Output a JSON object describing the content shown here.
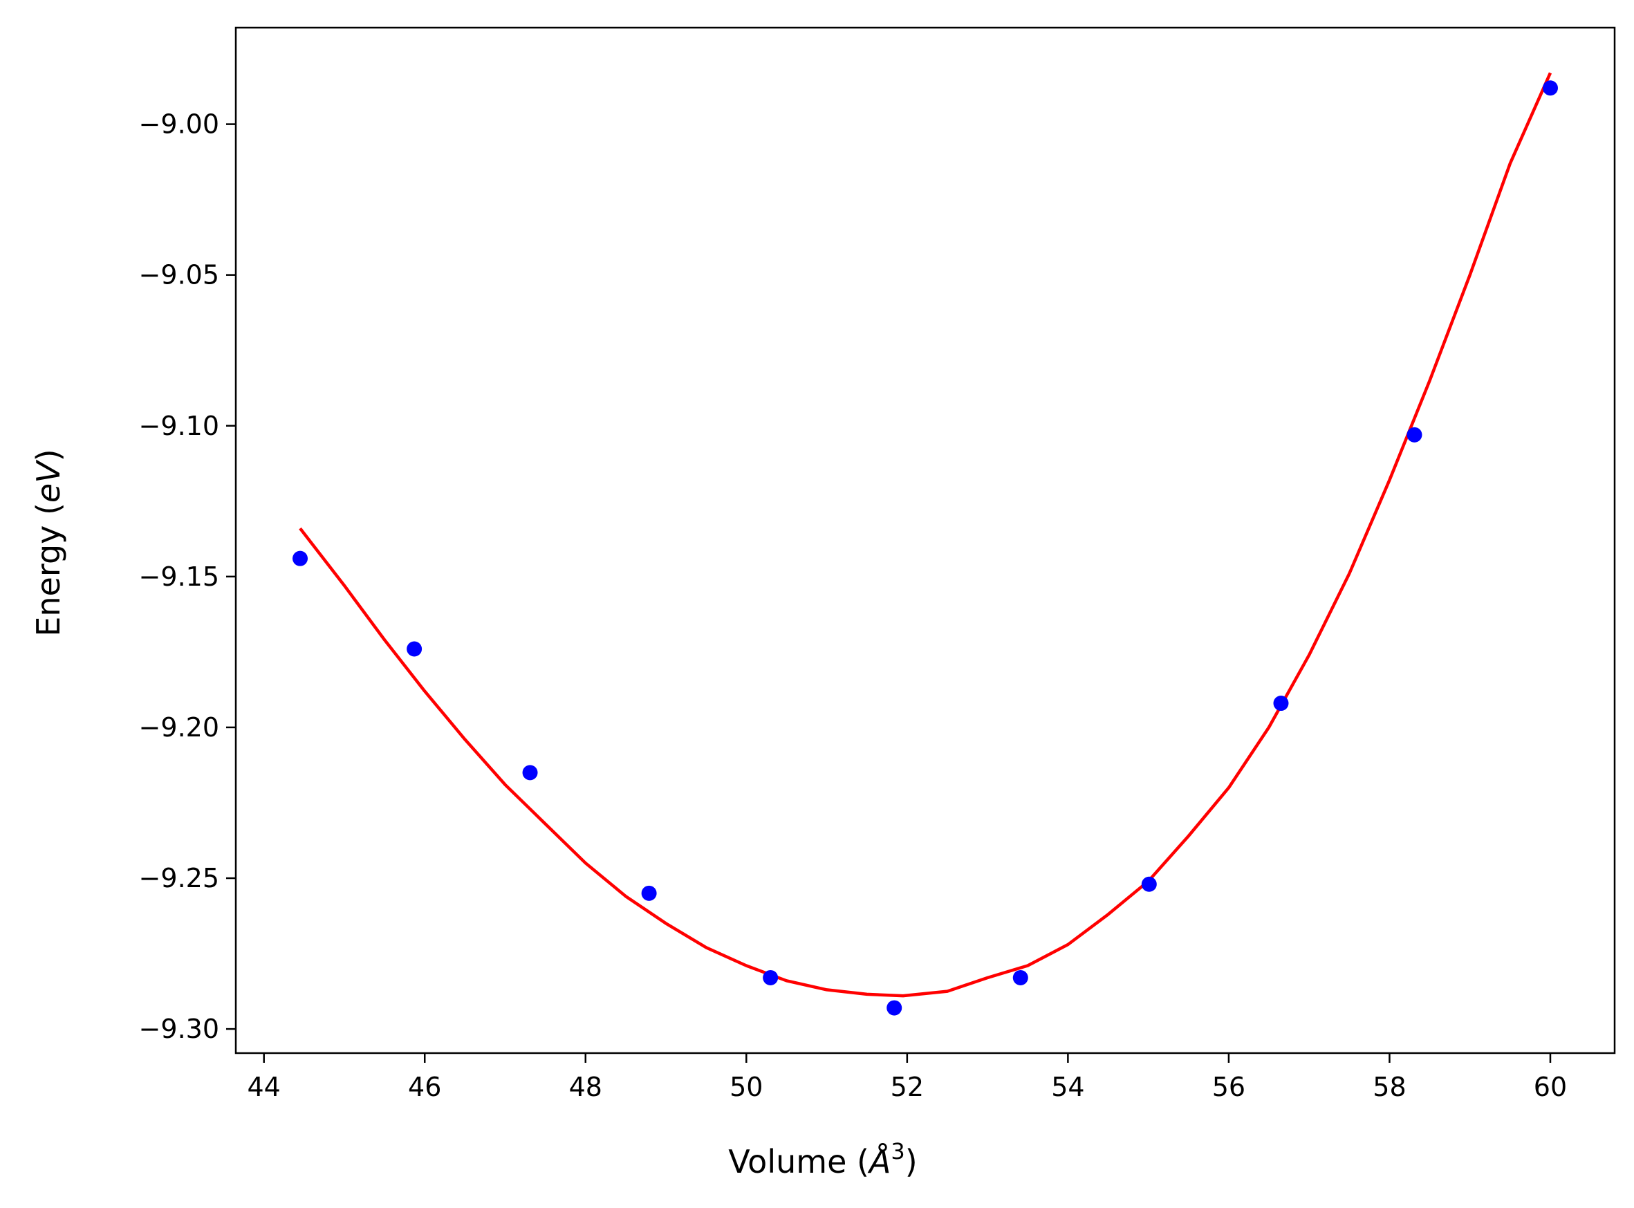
{
  "chart_data": {
    "type": "scatter",
    "title": "",
    "xlabel": "Volume (Å³)",
    "xlabel_parts": {
      "prefix": "Volume (",
      "symbol": "Å",
      "exponent": "3",
      "suffix": ")"
    },
    "ylabel": "Energy (eV)",
    "ylabel_parts": {
      "prefix": "Energy (",
      "symbol": "eV",
      "suffix": ")"
    },
    "xlim": [
      43.65,
      60.8
    ],
    "ylim": [
      -9.308,
      -8.968
    ],
    "x_ticks": [
      44,
      46,
      48,
      50,
      52,
      54,
      56,
      58,
      60
    ],
    "x_tick_labels": [
      "44",
      "46",
      "48",
      "50",
      "52",
      "54",
      "56",
      "58",
      "60"
    ],
    "y_ticks": [
      -9.0,
      -9.05,
      -9.1,
      -9.15,
      -9.2,
      -9.25,
      -9.3
    ],
    "y_tick_labels": [
      "−9.00",
      "−9.05",
      "−9.10",
      "−9.15",
      "−9.20",
      "−9.25",
      "−9.30"
    ],
    "grid": false,
    "series": [
      {
        "kind": "scatter",
        "color": "#0000ff",
        "x": [
          44.45,
          45.87,
          47.31,
          48.79,
          50.3,
          51.84,
          53.41,
          55.01,
          56.65,
          58.31,
          60.0
        ],
        "y": [
          -9.144,
          -9.174,
          -9.215,
          -9.255,
          -9.283,
          -9.293,
          -9.283,
          -9.252,
          -9.192,
          -9.103,
          -8.988
        ]
      },
      {
        "kind": "line",
        "color": "#ff0000",
        "x": [
          44.45,
          45.0,
          45.5,
          46.0,
          46.5,
          47.0,
          47.5,
          48.0,
          48.5,
          49.0,
          49.5,
          50.0,
          50.5,
          51.0,
          51.5,
          51.95,
          52.5,
          53.0,
          53.5,
          54.0,
          54.5,
          55.0,
          55.5,
          56.0,
          56.5,
          57.0,
          57.5,
          58.0,
          58.5,
          59.0,
          59.5,
          60.0
        ],
        "y": [
          -9.134,
          -9.153,
          -9.171,
          -9.188,
          -9.204,
          -9.219,
          -9.232,
          -9.245,
          -9.256,
          -9.265,
          -9.273,
          -9.279,
          -9.284,
          -9.287,
          -9.2885,
          -9.289,
          -9.2875,
          -9.283,
          -9.279,
          -9.272,
          -9.262,
          -9.251,
          -9.236,
          -9.22,
          -9.2,
          -9.176,
          -9.149,
          -9.118,
          -9.085,
          -9.05,
          -9.013,
          -8.983
        ]
      }
    ]
  }
}
